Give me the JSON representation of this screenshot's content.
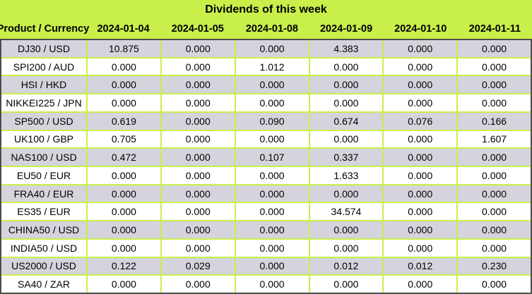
{
  "title": "Dividends of this week",
  "chart_data": {
    "type": "table",
    "title": "Dividends of this week",
    "columns": [
      "Product / Currency",
      "2024-01-04",
      "2024-01-05",
      "2024-01-08",
      "2024-01-09",
      "2024-01-10",
      "2024-01-11"
    ],
    "rows": [
      {
        "product": "DJ30 / USD",
        "values": [
          "10.875",
          "0.000",
          "0.000",
          "4.383",
          "0.000",
          "0.000"
        ]
      },
      {
        "product": "SPI200 / AUD",
        "values": [
          "0.000",
          "0.000",
          "1.012",
          "0.000",
          "0.000",
          "0.000"
        ]
      },
      {
        "product": "HSI / HKD",
        "values": [
          "0.000",
          "0.000",
          "0.000",
          "0.000",
          "0.000",
          "0.000"
        ]
      },
      {
        "product": "NIKKEI225 / JPN",
        "values": [
          "0.000",
          "0.000",
          "0.000",
          "0.000",
          "0.000",
          "0.000"
        ]
      },
      {
        "product": "SP500 / USD",
        "values": [
          "0.619",
          "0.000",
          "0.090",
          "0.674",
          "0.076",
          "0.166"
        ]
      },
      {
        "product": "UK100 / GBP",
        "values": [
          "0.705",
          "0.000",
          "0.000",
          "0.000",
          "0.000",
          "1.607"
        ]
      },
      {
        "product": "NAS100 / USD",
        "values": [
          "0.472",
          "0.000",
          "0.107",
          "0.337",
          "0.000",
          "0.000"
        ]
      },
      {
        "product": "EU50 / EUR",
        "values": [
          "0.000",
          "0.000",
          "0.000",
          "1.633",
          "0.000",
          "0.000"
        ]
      },
      {
        "product": "FRA40 / EUR",
        "values": [
          "0.000",
          "0.000",
          "0.000",
          "0.000",
          "0.000",
          "0.000"
        ]
      },
      {
        "product": "ES35 / EUR",
        "values": [
          "0.000",
          "0.000",
          "0.000",
          "34.574",
          "0.000",
          "0.000"
        ]
      },
      {
        "product": "CHINA50 / USD",
        "values": [
          "0.000",
          "0.000",
          "0.000",
          "0.000",
          "0.000",
          "0.000"
        ]
      },
      {
        "product": "INDIA50 / USD",
        "values": [
          "0.000",
          "0.000",
          "0.000",
          "0.000",
          "0.000",
          "0.000"
        ]
      },
      {
        "product": "US2000 / USD",
        "values": [
          "0.122",
          "0.029",
          "0.000",
          "0.012",
          "0.012",
          "0.230"
        ]
      },
      {
        "product": "SA40 / ZAR",
        "values": [
          "0.000",
          "0.000",
          "0.000",
          "0.000",
          "0.000",
          "0.000"
        ]
      }
    ],
    "layout": {
      "row_striping": "odd-rows-gray",
      "grid": "on"
    }
  },
  "colors": {
    "green": "#c9ef4a",
    "row-gray": "#d5d4dc",
    "row-white": "#ffffff",
    "border-dark": "#4d4d4d",
    "text": "#000000"
  }
}
